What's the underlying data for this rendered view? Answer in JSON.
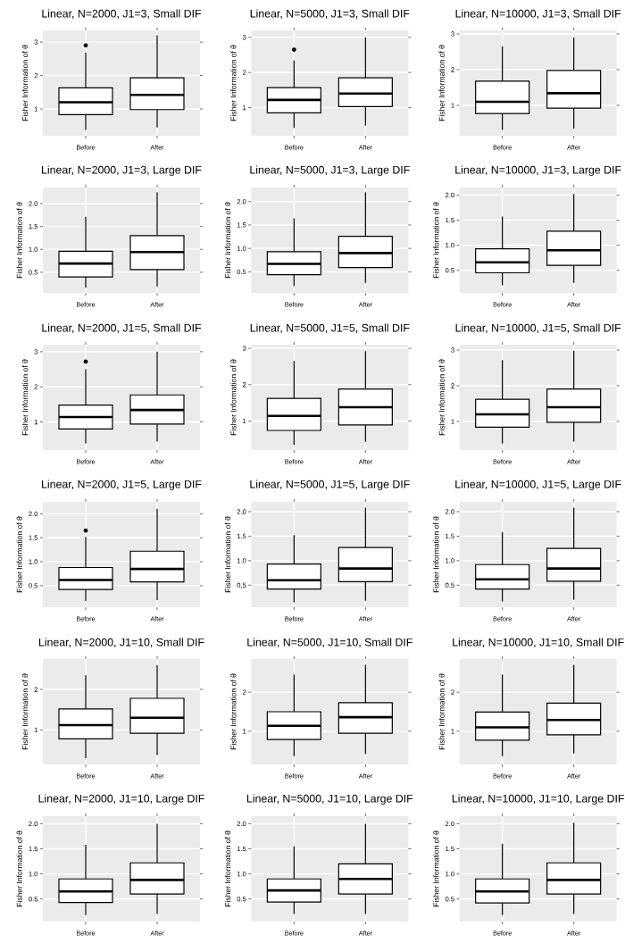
{
  "chart_data": [
    {
      "type": "box",
      "title": "Linear, N=2000, J1=3, Small DIF",
      "ylabel": "Fisher Information of θ",
      "categories": [
        "Before",
        "After"
      ],
      "grid": true,
      "ylim": [
        0.2,
        3.35
      ],
      "yticks": [
        1,
        2,
        3
      ],
      "boxes": [
        {
          "low": 0.37,
          "q1": 0.83,
          "median": 1.2,
          "q3": 1.63,
          "high": 2.68,
          "outliers": [
            2.9
          ]
        },
        {
          "low": 0.45,
          "q1": 0.98,
          "median": 1.42,
          "q3": 1.93,
          "high": 3.2
        }
      ]
    },
    {
      "type": "box",
      "title": "Linear, N=5000, J1=3, Small DIF",
      "ylabel": "Fisher Information of θ",
      "categories": [
        "Before",
        "After"
      ],
      "grid": true,
      "ylim": [
        0.2,
        3.2
      ],
      "yticks": [
        1,
        2,
        3
      ],
      "boxes": [
        {
          "low": 0.42,
          "q1": 0.85,
          "median": 1.22,
          "q3": 1.57,
          "high": 2.34,
          "outliers": [
            2.65
          ]
        },
        {
          "low": 0.49,
          "q1": 1.03,
          "median": 1.4,
          "q3": 1.85,
          "high": 3.0
        }
      ]
    },
    {
      "type": "box",
      "title": "Linear, N=10000, J1=3, Small DIF",
      "ylabel": "Fisher Information of θ",
      "categories": [
        "Before",
        "After"
      ],
      "grid": true,
      "ylim": [
        0.15,
        3.1
      ],
      "yticks": [
        1,
        2,
        3
      ],
      "boxes": [
        {
          "low": 0.31,
          "q1": 0.77,
          "median": 1.1,
          "q3": 1.68,
          "high": 2.65
        },
        {
          "low": 0.35,
          "q1": 0.92,
          "median": 1.34,
          "q3": 1.98,
          "high": 2.9
        }
      ]
    },
    {
      "type": "box",
      "title": "Linear, N=2000, J1=3, Large DIF",
      "ylabel": "Fisher Information of θ",
      "categories": [
        "Before",
        "After"
      ],
      "grid": true,
      "ylim": [
        0.05,
        2.35
      ],
      "yticks": [
        {
          "value": 0.5,
          "label": "0.5"
        },
        {
          "value": 1,
          "label": "1.0"
        },
        {
          "value": 1.5,
          "label": "1.5"
        },
        {
          "value": 2,
          "label": "2.0"
        }
      ],
      "boxes": [
        {
          "low": 0.16,
          "q1": 0.4,
          "median": 0.69,
          "q3": 0.96,
          "high": 1.71
        },
        {
          "low": 0.19,
          "q1": 0.56,
          "median": 0.94,
          "q3": 1.3,
          "high": 2.25
        }
      ]
    },
    {
      "type": "box",
      "title": "Linear, N=5000, J1=3, Large DIF",
      "ylabel": "Fisher Information of θ",
      "categories": [
        "Before",
        "After"
      ],
      "grid": true,
      "ylim": [
        0.05,
        2.3
      ],
      "yticks": [
        {
          "value": 0.5,
          "label": "0.5"
        },
        {
          "value": 1,
          "label": "1.0"
        },
        {
          "value": 1.5,
          "label": "1.5"
        },
        {
          "value": 2,
          "label": "2.0"
        }
      ],
      "boxes": [
        {
          "low": 0.2,
          "q1": 0.44,
          "median": 0.67,
          "q3": 0.93,
          "high": 1.64
        },
        {
          "low": 0.26,
          "q1": 0.59,
          "median": 0.9,
          "q3": 1.26,
          "high": 2.2
        }
      ]
    },
    {
      "type": "box",
      "title": "Linear, N=10000, J1=3, Large DIF",
      "ylabel": "Fisher Information of θ",
      "categories": [
        "Before",
        "After"
      ],
      "grid": true,
      "ylim": [
        0.05,
        2.15
      ],
      "yticks": [
        {
          "value": 0.5,
          "label": "0.5"
        },
        {
          "value": 1,
          "label": "1.0"
        },
        {
          "value": 1.5,
          "label": "1.5"
        },
        {
          "value": 2,
          "label": "2.0"
        }
      ],
      "boxes": [
        {
          "low": 0.2,
          "q1": 0.45,
          "median": 0.66,
          "q3": 0.93,
          "high": 1.57
        },
        {
          "low": 0.25,
          "q1": 0.6,
          "median": 0.9,
          "q3": 1.28,
          "high": 2.02
        }
      ]
    },
    {
      "type": "box",
      "title": "Linear, N=2000, J1=5, Small DIF",
      "ylabel": "Fisher Information of θ",
      "categories": [
        "Before",
        "After"
      ],
      "grid": true,
      "ylim": [
        0.2,
        3.2
      ],
      "yticks": [
        1,
        2,
        3
      ],
      "boxes": [
        {
          "low": 0.39,
          "q1": 0.8,
          "median": 1.14,
          "q3": 1.48,
          "high": 2.5,
          "outliers": [
            2.72
          ]
        },
        {
          "low": 0.44,
          "q1": 0.94,
          "median": 1.34,
          "q3": 1.77,
          "high": 3.0
        }
      ]
    },
    {
      "type": "box",
      "title": "Linear, N=5000, J1=5, Small DIF",
      "ylabel": "Fisher Information of θ",
      "categories": [
        "Before",
        "After"
      ],
      "grid": true,
      "ylim": [
        0.2,
        3.1
      ],
      "yticks": [
        1,
        2,
        3
      ],
      "boxes": [
        {
          "low": 0.34,
          "q1": 0.74,
          "median": 1.14,
          "q3": 1.62,
          "high": 2.65
        },
        {
          "low": 0.43,
          "q1": 0.89,
          "median": 1.38,
          "q3": 1.88,
          "high": 2.92
        }
      ]
    },
    {
      "type": "box",
      "title": "Linear, N=10000, J1=5, Small DIF",
      "ylabel": "Fisher Information of θ",
      "categories": [
        "Before",
        "After"
      ],
      "grid": true,
      "ylim": [
        0.2,
        3.15
      ],
      "yticks": [
        1,
        2,
        3
      ],
      "boxes": [
        {
          "low": 0.38,
          "q1": 0.84,
          "median": 1.2,
          "q3": 1.62,
          "high": 2.72
        },
        {
          "low": 0.44,
          "q1": 0.98,
          "median": 1.4,
          "q3": 1.91,
          "high": 2.98
        }
      ]
    },
    {
      "type": "box",
      "title": "Linear, N=2000, J1=5, Large DIF",
      "ylabel": "Fisher Information of θ",
      "categories": [
        "Before",
        "After"
      ],
      "grid": true,
      "ylim": [
        0.05,
        2.25
      ],
      "yticks": [
        {
          "value": 0.5,
          "label": "0.5"
        },
        {
          "value": 1,
          "label": "1.0"
        },
        {
          "value": 1.5,
          "label": "1.5"
        },
        {
          "value": 2,
          "label": "2.0"
        }
      ],
      "boxes": [
        {
          "low": 0.18,
          "q1": 0.42,
          "median": 0.62,
          "q3": 0.88,
          "high": 1.52,
          "outliers": [
            1.65
          ]
        },
        {
          "low": 0.2,
          "q1": 0.58,
          "median": 0.85,
          "q3": 1.22,
          "high": 2.1
        }
      ]
    },
    {
      "type": "box",
      "title": "Linear, N=5000, J1=5, Large DIF",
      "ylabel": "Fisher Information of θ",
      "categories": [
        "Before",
        "After"
      ],
      "grid": true,
      "ylim": [
        0.05,
        2.2
      ],
      "yticks": [
        {
          "value": 0.5,
          "label": "0.5"
        },
        {
          "value": 1,
          "label": "1.0"
        },
        {
          "value": 1.5,
          "label": "1.5"
        },
        {
          "value": 2,
          "label": "2.0"
        }
      ],
      "boxes": [
        {
          "low": 0.15,
          "q1": 0.42,
          "median": 0.6,
          "q3": 0.93,
          "high": 1.52
        },
        {
          "low": 0.18,
          "q1": 0.57,
          "median": 0.84,
          "q3": 1.27,
          "high": 2.08
        }
      ]
    },
    {
      "type": "box",
      "title": "Linear, N=10000, J1=5, Large DIF",
      "ylabel": "Fisher Information of θ",
      "categories": [
        "Before",
        "After"
      ],
      "grid": true,
      "ylim": [
        0.05,
        2.2
      ],
      "yticks": [
        {
          "value": 0.5,
          "label": "0.5"
        },
        {
          "value": 1,
          "label": "1.0"
        },
        {
          "value": 1.5,
          "label": "1.5"
        },
        {
          "value": 2,
          "label": "2.0"
        }
      ],
      "boxes": [
        {
          "low": 0.17,
          "q1": 0.42,
          "median": 0.62,
          "q3": 0.92,
          "high": 1.58
        },
        {
          "low": 0.2,
          "q1": 0.58,
          "median": 0.84,
          "q3": 1.25,
          "high": 2.08
        }
      ]
    },
    {
      "type": "box",
      "title": "Linear, N=2000, J1=10, Small DIF",
      "ylabel": "Fisher Information of θ",
      "categories": [
        "Before",
        "After"
      ],
      "grid": true,
      "ylim": [
        0.15,
        2.75
      ],
      "yticks": [
        1,
        2
      ],
      "boxes": [
        {
          "low": 0.3,
          "q1": 0.78,
          "median": 1.12,
          "q3": 1.52,
          "high": 2.35
        },
        {
          "low": 0.38,
          "q1": 0.92,
          "median": 1.3,
          "q3": 1.78,
          "high": 2.6
        }
      ]
    },
    {
      "type": "box",
      "title": "Linear, N=5000, J1=10, Small DIF",
      "ylabel": "Fisher Information of θ",
      "categories": [
        "Before",
        "After"
      ],
      "grid": true,
      "ylim": [
        0.15,
        2.85
      ],
      "yticks": [
        1,
        2
      ],
      "boxes": [
        {
          "low": 0.36,
          "q1": 0.79,
          "median": 1.14,
          "q3": 1.5,
          "high": 2.45
        },
        {
          "low": 0.42,
          "q1": 0.95,
          "median": 1.36,
          "q3": 1.73,
          "high": 2.7
        }
      ]
    },
    {
      "type": "box",
      "title": "Linear, N=10000, J1=10, Small DIF",
      "ylabel": "Fisher Information of θ",
      "categories": [
        "Before",
        "After"
      ],
      "grid": true,
      "ylim": [
        0.15,
        2.85
      ],
      "yticks": [
        1,
        2
      ],
      "boxes": [
        {
          "low": 0.36,
          "q1": 0.77,
          "median": 1.1,
          "q3": 1.49,
          "high": 2.45
        },
        {
          "low": 0.43,
          "q1": 0.91,
          "median": 1.29,
          "q3": 1.72,
          "high": 2.7
        }
      ]
    },
    {
      "type": "box",
      "title": "Linear, N=2000, J1=10, Large DIF",
      "ylabel": "Fisher Information of θ",
      "categories": [
        "Before",
        "After"
      ],
      "grid": true,
      "ylim": [
        0.05,
        2.15
      ],
      "yticks": [
        {
          "value": 0.5,
          "label": "0.5"
        },
        {
          "value": 1,
          "label": "1.0"
        },
        {
          "value": 1.5,
          "label": "1.5"
        },
        {
          "value": 2,
          "label": "2.0"
        }
      ],
      "boxes": [
        {
          "low": 0.18,
          "q1": 0.43,
          "median": 0.65,
          "q3": 0.9,
          "high": 1.58
        },
        {
          "low": 0.2,
          "q1": 0.6,
          "median": 0.88,
          "q3": 1.22,
          "high": 2.0
        }
      ]
    },
    {
      "type": "box",
      "title": "Linear, N=5000, J1=10, Large DIF",
      "ylabel": "Fisher Information of θ",
      "categories": [
        "Before",
        "After"
      ],
      "grid": true,
      "ylim": [
        0.05,
        2.15
      ],
      "yticks": [
        {
          "value": 0.5,
          "label": "0.5"
        },
        {
          "value": 1,
          "label": "1.0"
        },
        {
          "value": 1.5,
          "label": "1.5"
        },
        {
          "value": 2,
          "label": "2.0"
        }
      ],
      "boxes": [
        {
          "low": 0.2,
          "q1": 0.44,
          "median": 0.67,
          "q3": 0.9,
          "high": 1.55
        },
        {
          "low": 0.2,
          "q1": 0.6,
          "median": 0.9,
          "q3": 1.2,
          "high": 2.0
        }
      ]
    },
    {
      "type": "box",
      "title": "Linear, N=10000, J1=10, Large DIF",
      "ylabel": "Fisher Information of θ",
      "categories": [
        "Before",
        "After"
      ],
      "grid": true,
      "ylim": [
        0.05,
        2.15
      ],
      "yticks": [
        {
          "value": 0.5,
          "label": "0.5"
        },
        {
          "value": 1,
          "label": "1.0"
        },
        {
          "value": 1.5,
          "label": "1.5"
        },
        {
          "value": 2,
          "label": "2.0"
        }
      ],
      "boxes": [
        {
          "low": 0.18,
          "q1": 0.42,
          "median": 0.65,
          "q3": 0.9,
          "high": 1.6
        },
        {
          "low": 0.2,
          "q1": 0.6,
          "median": 0.88,
          "q3": 1.22,
          "high": 2.02
        }
      ]
    }
  ]
}
